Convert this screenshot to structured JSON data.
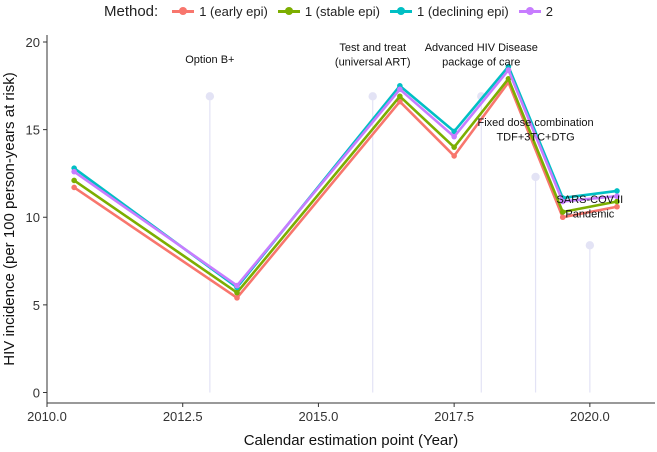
{
  "chart_data": {
    "type": "line",
    "title": "",
    "xlabel": "Calendar estimation point (Year)",
    "ylabel": "HIV incidence (per 100 person-years at risk)",
    "xlim": [
      2010,
      2021.2
    ],
    "ylim": [
      -0.6,
      20.4
    ],
    "x_ticks": [
      2010.0,
      2012.5,
      2015.0,
      2017.5,
      2020.0
    ],
    "x_tick_labels": [
      "2010.0",
      "2012.5",
      "2015.0",
      "2017.5",
      "2020.0"
    ],
    "y_ticks": [
      0,
      5,
      10,
      15,
      20
    ],
    "y_tick_labels": [
      "0",
      "5",
      "10",
      "15",
      "20"
    ],
    "grid": false,
    "legend": {
      "title": "Method:",
      "position": "top"
    },
    "x": [
      2010.5,
      2013.5,
      2016.5,
      2017.5,
      2018.5,
      2019.5,
      2020.5
    ],
    "series": [
      {
        "name": "1 (early epi)",
        "color": "#F8766D",
        "values": [
          11.7,
          5.4,
          16.6,
          13.5,
          17.7,
          10.0,
          10.6
        ]
      },
      {
        "name": "1 (stable epi)",
        "color": "#7CAE00",
        "values": [
          12.1,
          5.7,
          16.9,
          14.0,
          17.9,
          10.3,
          10.9
        ]
      },
      {
        "name": "1 (declining epi)",
        "color": "#00BFC4",
        "values": [
          12.8,
          6.0,
          17.5,
          14.9,
          18.6,
          11.1,
          11.5
        ]
      },
      {
        "name": "2",
        "color": "#C77CFF",
        "values": [
          12.6,
          6.1,
          17.3,
          14.6,
          18.4,
          10.9,
          11.2
        ]
      }
    ],
    "annotations": [
      {
        "x": 2013.0,
        "y": 16.9,
        "lines": [
          "Option B+"
        ],
        "label_y": 18.8,
        "anchor": "middle"
      },
      {
        "x": 2016.0,
        "y": 16.9,
        "lines": [
          "Test and treat",
          "(universal ART)"
        ],
        "label_y": 19.5,
        "anchor": "middle"
      },
      {
        "x": 2018.0,
        "y": 16.9,
        "lines": [
          "Advanced HIV Disease",
          "package of care"
        ],
        "label_y": 19.5,
        "anchor": "middle"
      },
      {
        "x": 2019.0,
        "y": 12.3,
        "lines": [
          "Fixed dose combination",
          "TDF+3TC+DTG"
        ],
        "label_y": 15.2,
        "anchor": "middle"
      },
      {
        "x": 2020.0,
        "y": 8.4,
        "lines": [
          "SARS-COV II",
          "Pandemic"
        ],
        "label_y": 10.8,
        "anchor": "middle"
      }
    ],
    "annotation_color": "#E3E3F5"
  }
}
